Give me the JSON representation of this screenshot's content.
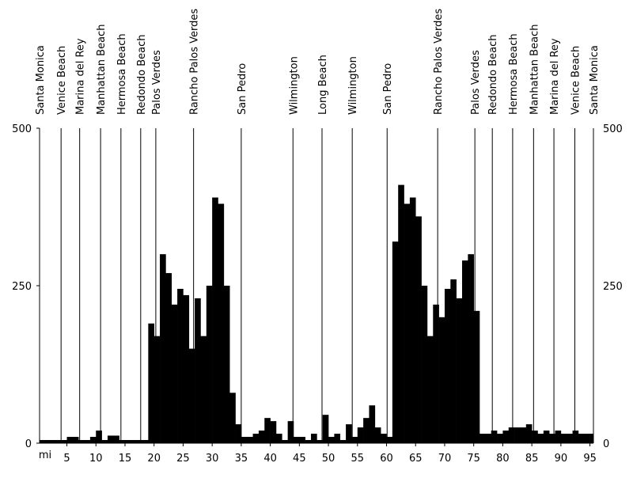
{
  "chart_data": {
    "type": "elevation",
    "x_unit": "mi",
    "x": [
      0.3,
      1,
      2,
      3,
      4,
      5,
      6,
      7,
      8,
      9,
      10,
      11,
      12,
      13,
      14,
      15,
      16,
      17,
      18,
      19,
      20,
      21,
      22,
      23,
      24,
      25,
      26,
      27,
      28,
      29,
      30,
      31,
      32,
      33,
      34,
      35,
      36,
      37,
      38,
      39,
      40,
      41,
      42,
      43,
      44,
      45,
      46,
      47,
      48,
      49,
      50,
      51,
      52,
      53,
      54,
      55,
      56,
      57,
      58,
      59,
      60,
      61,
      62,
      63,
      64,
      65,
      66,
      67,
      68,
      69,
      70,
      71,
      72,
      73,
      74,
      75,
      76,
      77,
      78,
      79,
      80,
      81,
      82,
      83,
      84,
      85,
      86,
      87,
      88,
      89,
      90,
      91,
      92,
      93,
      94,
      95
    ],
    "values": [
      5,
      5,
      5,
      5,
      5,
      10,
      10,
      5,
      5,
      10,
      20,
      5,
      12,
      12,
      5,
      5,
      5,
      5,
      5,
      190,
      170,
      300,
      270,
      220,
      245,
      235,
      150,
      230,
      170,
      250,
      390,
      380,
      250,
      80,
      30,
      10,
      10,
      15,
      20,
      40,
      35,
      15,
      5,
      35,
      10,
      10,
      5,
      15,
      5,
      45,
      10,
      15,
      5,
      30,
      10,
      25,
      40,
      60,
      25,
      15,
      10,
      320,
      410,
      380,
      390,
      360,
      250,
      170,
      220,
      200,
      245,
      260,
      230,
      290,
      300,
      210,
      15,
      15,
      20,
      15,
      20,
      25,
      25,
      25,
      30,
      20,
      15,
      20,
      15,
      20,
      15,
      15,
      20,
      15,
      15,
      15
    ],
    "color": "#000000",
    "xlim": [
      0.3,
      95.6
    ],
    "xticks": [
      5,
      10,
      15,
      20,
      25,
      30,
      35,
      40,
      45,
      50,
      55,
      60,
      65,
      70,
      75,
      80,
      85,
      90,
      95
    ],
    "ylim": [
      0,
      500
    ],
    "yticks": [
      0,
      250,
      500
    ],
    "towns": [
      {
        "name": "Santa Monica",
        "mile": 0.3
      },
      {
        "name": "Venice Beach",
        "mile": 4
      },
      {
        "name": "Marina del Rey",
        "mile": 7.2
      },
      {
        "name": "Manhattan Beach",
        "mile": 10.8
      },
      {
        "name": "Hermosa Beach",
        "mile": 14.3
      },
      {
        "name": "Redondo Beach",
        "mile": 17.7
      },
      {
        "name": "Palos Verdes",
        "mile": 20.3
      },
      {
        "name": "Rancho Palos Verdes",
        "mile": 26.8
      },
      {
        "name": "San Pedro",
        "mile": 35
      },
      {
        "name": "Wilmington",
        "mile": 43.9
      },
      {
        "name": "Long Beach",
        "mile": 48.9
      },
      {
        "name": "Wilmington",
        "mile": 54.1
      },
      {
        "name": "San Pedro",
        "mile": 60.1
      },
      {
        "name": "Rancho Palos Verdes",
        "mile": 68.8
      },
      {
        "name": "Palos Verdes",
        "mile": 75.2
      },
      {
        "name": "Redondo Beach",
        "mile": 78.2
      },
      {
        "name": "Hermosa Beach",
        "mile": 81.7
      },
      {
        "name": "Manhattan Beach",
        "mile": 85.3
      },
      {
        "name": "Marina del Rey",
        "mile": 88.8
      },
      {
        "name": "Venice Beach",
        "mile": 92.4
      },
      {
        "name": "Santa Monica",
        "mile": 95.6
      }
    ]
  }
}
